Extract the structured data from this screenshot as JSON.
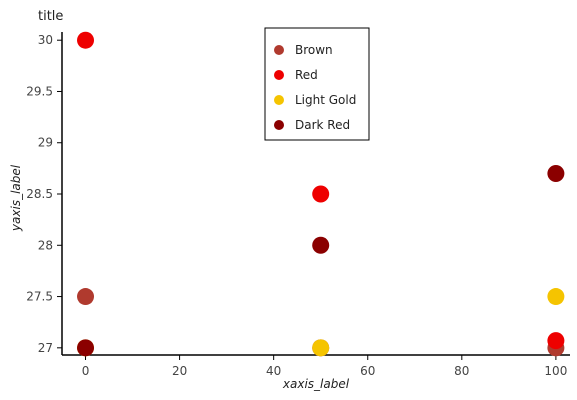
{
  "chart_data": {
    "type": "scatter",
    "title": "title",
    "xlabel": "xaxis_label",
    "ylabel": "yaxis_label",
    "xlim": [
      -5,
      103
    ],
    "ylim": [
      26.93,
      30.08
    ],
    "xticks": [
      0,
      20,
      40,
      60,
      80,
      100
    ],
    "yticks": [
      27,
      27.5,
      28,
      28.5,
      29,
      29.5,
      30
    ],
    "xtick_labels": [
      "0",
      "20",
      "40",
      "60",
      "80",
      "100"
    ],
    "ytick_labels": [
      "27",
      "27.5",
      "28",
      "28.5",
      "29",
      "29.5",
      "30"
    ],
    "grid": false,
    "legend_position": "top-center",
    "x": [
      0,
      50,
      100
    ],
    "series": [
      {
        "name": "Brown",
        "color": "#b03a2e",
        "values": [
          27.5,
          27.0,
          27.0
        ]
      },
      {
        "name": "Red",
        "color": "#ee0000",
        "values": [
          30.0,
          28.5,
          27.07
        ]
      },
      {
        "name": "Light Gold",
        "color": "#f5c400",
        "values": [
          27.0,
          27.0,
          27.5
        ]
      },
      {
        "name": "Dark Red",
        "color": "#8b0000",
        "values": [
          27.0,
          28.0,
          28.7
        ]
      }
    ]
  }
}
